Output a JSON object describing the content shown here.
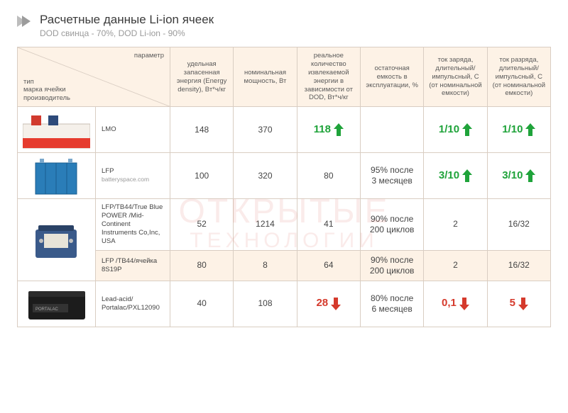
{
  "header": {
    "title": "Расчетные данные Li-ion ячеек",
    "subtitle": "DOD свинца - 70%, DOD Li-ion - 90%"
  },
  "watermark": {
    "line1": "ОТКРЫТЫЕ",
    "line2": "ТЕХНОЛОГИИ"
  },
  "colors": {
    "up": "#1fa33a",
    "down": "#d53a2c",
    "header_bg": "#fdf2e6",
    "border": "#d9cdc2",
    "text": "#444444"
  },
  "table": {
    "diag_header": {
      "top": "параметр",
      "bottom": "тип\nмарка ячейки\nпроизводитель"
    },
    "columns": [
      "удельная запасенная энергия (Energy density), Вт*ч/кг",
      "номинальная мощность, Вт",
      "реальное количество извлекаемой энергии в зависимости от DOD, Вт*ч/кг",
      "остаточная емкость в эксплуатации, %",
      "ток заряда, длительный/импульсный, С (от номинальной емкости)",
      "ток разряда, длительный/импульсный, С (от номинальной емкости)"
    ],
    "rows": [
      {
        "battery": "lmo",
        "name": "LMO",
        "name_sub": "",
        "c1": "148",
        "c2": "370",
        "c3": {
          "value": "118",
          "arrow": "up",
          "bold": true
        },
        "c4": "",
        "c5": {
          "value": "1/10",
          "arrow": "up",
          "bold": true
        },
        "c6": {
          "value": "1/10",
          "arrow": "up",
          "bold": true
        }
      },
      {
        "battery": "lfp",
        "name": "LFP",
        "name_sub": "batteryspace.com",
        "c1": "100",
        "c2": "320",
        "c3": {
          "value": "80"
        },
        "c4": "95% после\n3 месяцев",
        "c5": {
          "value": "3/10",
          "arrow": "up",
          "bold": true
        },
        "c6": {
          "value": "3/10",
          "arrow": "up",
          "bold": true
        }
      },
      {
        "battery": "tb44",
        "rowspan_img": 2,
        "name": "LFP/TB44/True Blue POWER /Mid-Continent Instruments Co,Inc, USA",
        "c1": "52",
        "c2": "1214",
        "c3": {
          "value": "41"
        },
        "c4": "90% после\n200 циклов",
        "c5": {
          "value": "2"
        },
        "c6": {
          "value": "16/32"
        }
      },
      {
        "highlight": true,
        "no_img": true,
        "name": "LFP /TB44/ячейка 8S19P",
        "c1": "80",
        "c2": "8",
        "c3": {
          "value": "64"
        },
        "c4": "90% после\n200 циклов",
        "c5": {
          "value": "2"
        },
        "c6": {
          "value": "16/32"
        }
      },
      {
        "battery": "lead",
        "name": "Lead-acid/ Portalac/PXL12090",
        "c1": "40",
        "c2": "108",
        "c3": {
          "value": "28",
          "arrow": "down",
          "bold": true
        },
        "c4": "80% после\n6 месяцев",
        "c5": {
          "value": "0,1",
          "arrow": "down",
          "bold": true
        },
        "c6": {
          "value": "5",
          "arrow": "down",
          "bold": true
        }
      }
    ]
  }
}
